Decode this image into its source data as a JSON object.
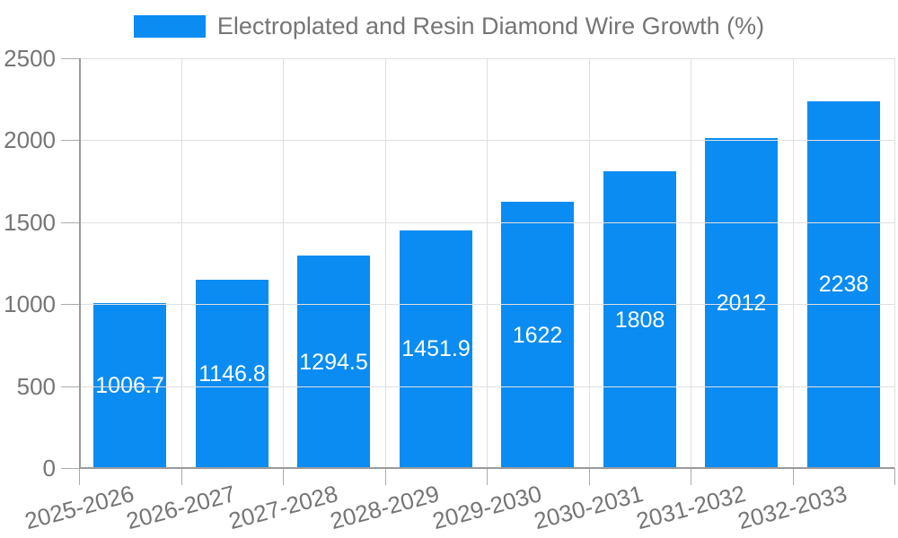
{
  "chart_data": {
    "type": "bar",
    "legend_label": "Electroplated and Resin Diamond Wire Growth (%)",
    "legend_position": "top-center",
    "categories": [
      "2025-2026",
      "2026-2027",
      "2027-2028",
      "2028-2029",
      "2029-2030",
      "2030-2031",
      "2031-2032",
      "2032-2033"
    ],
    "values": [
      1006.7,
      1146.8,
      1294.5,
      1451.9,
      1622,
      1808,
      2012,
      2238
    ],
    "value_labels": [
      "1006.7",
      "1146.8",
      "1294.5",
      "1451.9",
      "1622",
      "1808",
      "2012",
      "2238"
    ],
    "xlabel": "",
    "ylabel": "",
    "ylim": [
      0,
      2500
    ],
    "yticks": [
      0,
      500,
      1000,
      1500,
      2000,
      2500
    ],
    "grid": true,
    "colors": {
      "bar": "#0a8cf2",
      "axis_text": "#757575",
      "value_text": "#ffffff",
      "grid_line": "#e0e0e0",
      "axis_line": "#9a9a9a",
      "background": "#ffffff"
    }
  }
}
